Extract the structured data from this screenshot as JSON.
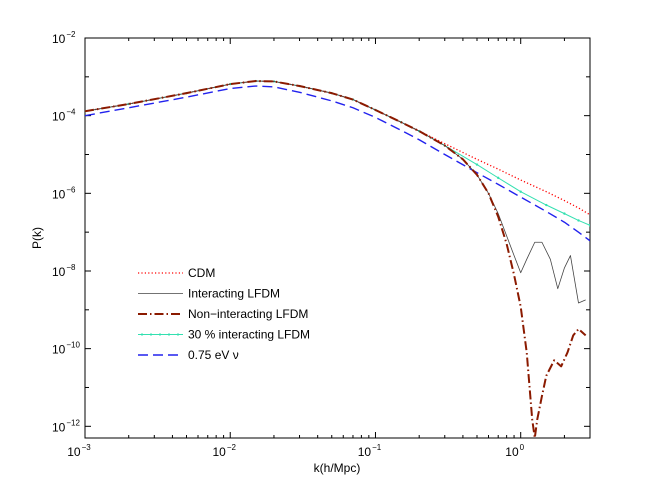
{
  "chart_data": {
    "type": "line",
    "title": "",
    "xlabel": "k(h/Mpc)",
    "ylabel": "P(k)",
    "xscale": "log",
    "yscale": "log",
    "xlim": [
      0.001,
      3.0
    ],
    "ylim": [
      5e-13,
      0.01
    ],
    "x_ticks": [
      {
        "base": "10",
        "exp": "-3"
      },
      {
        "base": "10",
        "exp": "-2"
      },
      {
        "base": "10",
        "exp": "-1"
      },
      {
        "base": "10",
        "exp": "0"
      }
    ],
    "y_ticks": [
      {
        "base": "10",
        "exp": "-12"
      },
      {
        "base": "10",
        "exp": "-10"
      },
      {
        "base": "10",
        "exp": "-8"
      },
      {
        "base": "10",
        "exp": "-6"
      },
      {
        "base": "10",
        "exp": "-4"
      },
      {
        "base": "10",
        "exp": "-2"
      }
    ],
    "grid": false,
    "legend_position": "lower-left",
    "series": [
      {
        "name": "CDM",
        "color": "#ff0000",
        "style": "dotted",
        "x": [
          0.001,
          0.002,
          0.005,
          0.01,
          0.015,
          0.02,
          0.03,
          0.05,
          0.07,
          0.1,
          0.15,
          0.2,
          0.3,
          0.5,
          0.7,
          1.0,
          1.5,
          2.0,
          2.5,
          3.0
        ],
        "y": [
          0.00013,
          0.0002,
          0.00038,
          0.00065,
          0.00078,
          0.00076,
          0.00058,
          0.00038,
          0.00026,
          0.00014,
          6.8e-05,
          4e-05,
          1.9e-05,
          7.5e-06,
          4.2e-06,
          2.2e-06,
          1.1e-06,
          6.5e-07,
          4.2e-07,
          2.8e-07
        ]
      },
      {
        "name": "Interacting LFDM",
        "color": "#444444",
        "style": "solid",
        "x": [
          0.001,
          0.002,
          0.005,
          0.01,
          0.015,
          0.02,
          0.03,
          0.05,
          0.07,
          0.1,
          0.15,
          0.2,
          0.3,
          0.4,
          0.5,
          0.6,
          0.7,
          0.8,
          0.9,
          1.0,
          1.1,
          1.25,
          1.4,
          1.6,
          1.8,
          2.0,
          2.2,
          2.5,
          2.8
        ],
        "y": [
          0.00013,
          0.0002,
          0.00038,
          0.00065,
          0.00078,
          0.00076,
          0.00058,
          0.00038,
          0.00026,
          0.00014,
          6.8e-05,
          4e-05,
          1.7e-05,
          7.5e-06,
          3e-06,
          1e-06,
          3e-07,
          8e-08,
          2.5e-08,
          9e-09,
          2e-08,
          5.5e-08,
          5.5e-08,
          2e-08,
          3.5e-09,
          1.2e-08,
          2.5e-08,
          1.5e-09,
          1.8e-09
        ]
      },
      {
        "name": "Non−interacting LFDM",
        "color": "#8b1a00",
        "style": "dashdot",
        "x": [
          0.001,
          0.002,
          0.005,
          0.01,
          0.015,
          0.02,
          0.03,
          0.05,
          0.07,
          0.1,
          0.15,
          0.2,
          0.3,
          0.4,
          0.5,
          0.6,
          0.7,
          0.8,
          0.9,
          1.0,
          1.1,
          1.2,
          1.25,
          1.3,
          1.4,
          1.5,
          1.7,
          1.9,
          2.1,
          2.3,
          2.5,
          2.8
        ],
        "y": [
          0.00013,
          0.0002,
          0.00038,
          0.00065,
          0.00078,
          0.00076,
          0.00058,
          0.00038,
          0.00026,
          0.00014,
          6.8e-05,
          4e-05,
          1.7e-05,
          7.5e-06,
          3e-06,
          1e-06,
          2.5e-07,
          5e-08,
          8e-09,
          1.2e-09,
          8e-11,
          1.5e-12,
          5e-13,
          1.5e-12,
          6e-12,
          2e-11,
          5e-11,
          3.5e-11,
          8e-11,
          2.2e-10,
          3.2e-10,
          2.2e-10
        ]
      },
      {
        "name": "30 % interacting LFDM",
        "color": "#33e0b0",
        "style": "solid-dots",
        "x": [
          0.001,
          0.002,
          0.005,
          0.01,
          0.015,
          0.02,
          0.03,
          0.05,
          0.07,
          0.1,
          0.15,
          0.2,
          0.3,
          0.5,
          0.7,
          1.0,
          1.5,
          2.0,
          2.5,
          3.0
        ],
        "y": [
          0.00013,
          0.0002,
          0.00038,
          0.00065,
          0.00078,
          0.00076,
          0.00058,
          0.00038,
          0.00026,
          0.00014,
          6.8e-05,
          4e-05,
          1.7e-05,
          5.5e-06,
          2.5e-06,
          1.1e-06,
          5e-07,
          3e-07,
          2e-07,
          1.5e-07
        ]
      },
      {
        "name": "0.75 eV ν",
        "color": "#2222ee",
        "style": "dashed",
        "x": [
          0.001,
          0.002,
          0.005,
          0.01,
          0.015,
          0.02,
          0.03,
          0.05,
          0.07,
          0.1,
          0.15,
          0.2,
          0.3,
          0.5,
          0.7,
          1.0,
          1.5,
          2.0,
          2.5,
          3.0
        ],
        "y": [
          0.0001,
          0.00016,
          0.0003,
          0.0005,
          0.00058,
          0.00055,
          0.0004,
          0.00024,
          0.00016,
          9e-05,
          4.2e-05,
          2.4e-05,
          1e-05,
          3.4e-06,
          1.7e-06,
          8e-07,
          3.4e-07,
          1.8e-07,
          1e-07,
          6e-08
        ]
      }
    ]
  }
}
